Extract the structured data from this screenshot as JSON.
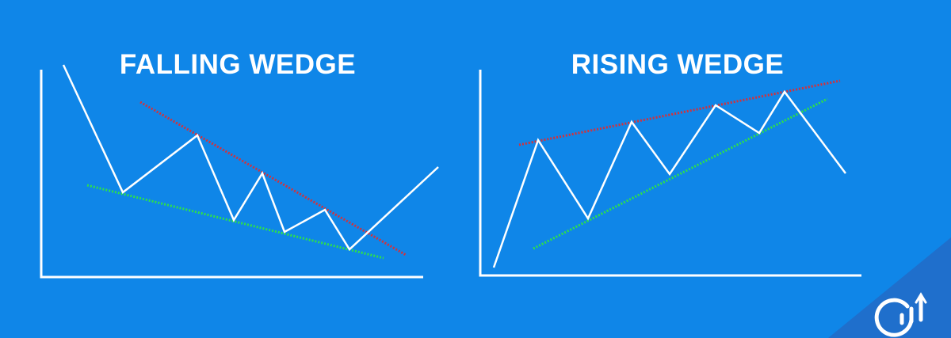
{
  "colors": {
    "background": "#0f86e8",
    "corner_triangle": "#1f6fcc",
    "price_line": "#ffffff",
    "resistance_line": "#d2323c",
    "support_line": "#2ee04a"
  },
  "falling_wedge": {
    "title": "FALLING WEDGE"
  },
  "rising_wedge": {
    "title": "RISING WEDGE"
  },
  "logo": {
    "icon": "bar-chart-arrow-logo"
  }
}
